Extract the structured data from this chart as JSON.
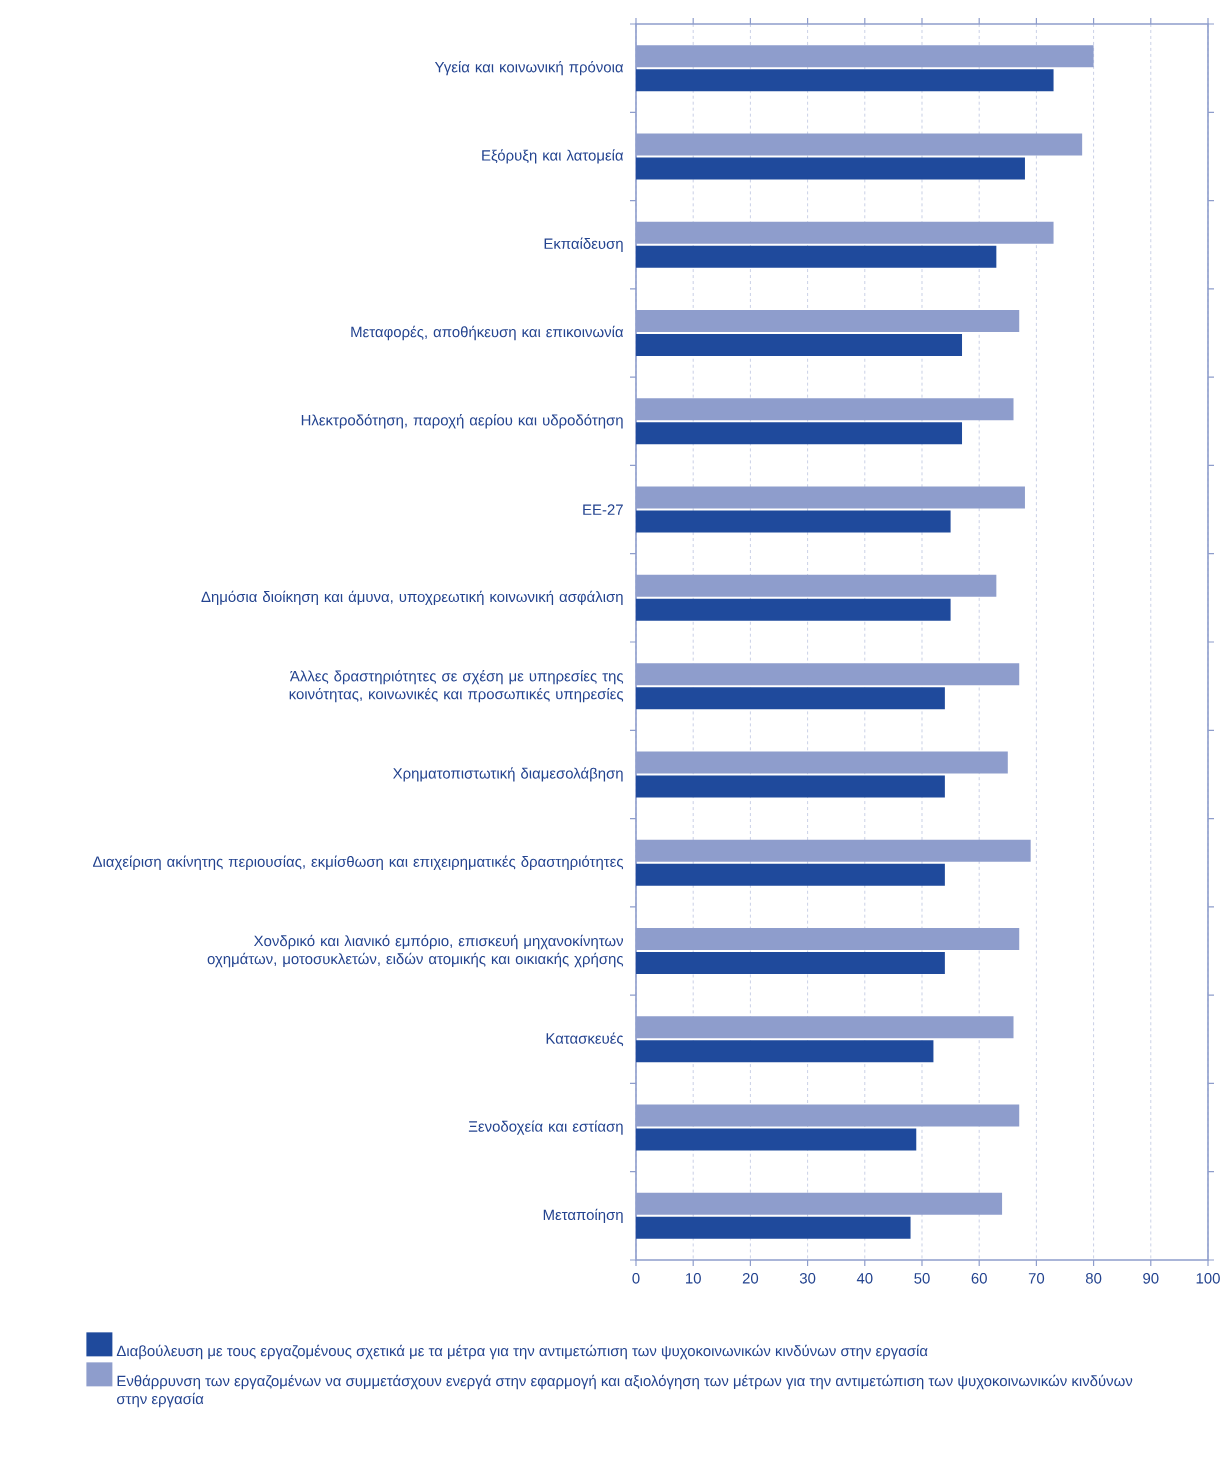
{
  "chart_data": {
    "type": "bar",
    "orientation": "horizontal",
    "categories": [
      "Υγεία και κοινωνική πρόνοια",
      "Εξόρυξη και λατομεία",
      "Εκπαίδευση",
      "Μεταφορές, αποθήκευση και επικοινωνία",
      "Ηλεκτροδότηση, παροχή αερίου και υδροδότηση",
      "ΕΕ-27",
      "Δημόσια διοίκηση και άμυνα, υποχρεωτική κοινωνική ασφάλιση",
      "Άλλες δραστηριότητες σε σχέση με υπηρεσίες της κοινότητας, κοινωνικές και προσωπικές υπηρεσίες",
      "Χρηματοπιστωτική διαμεσολάβηση",
      "Διαχείριση ακίνητης περιουσίας, εκμίσθωση και επιχειρηματικές δραστηριότητες",
      "Χονδρικό και λιανικό εμπόριο, επισκευή μηχανοκίνητων οχημάτων, μοτοσυκλετών, ειδών ατομικής και οικιακής χρήσης",
      "Κατασκευές",
      "Ξενοδοχεία και εστίαση",
      "Μεταποίηση"
    ],
    "series": [
      {
        "name": "Διαβούλευση με τους εργαζομένους σχετικά με τα μέτρα για την αντιμετώπιση των ψυχοκοινωνικών κινδύνων στην εργασία",
        "color": "#1f4a9c",
        "values": [
          73,
          68,
          63,
          57,
          57,
          55,
          55,
          54,
          54,
          54,
          54,
          52,
          49,
          48
        ]
      },
      {
        "name": "Ενθάρρυνση των εργαζομένων να συμμετάσχουν ενεργά στην εφαρμογή και αξιολόγηση των μέτρων για την αντιμετώπιση των ψυχοκοινωνικών κινδύνων στην εργασία",
        "color": "#8e9dcc",
        "values": [
          80,
          78,
          73,
          67,
          66,
          68,
          63,
          67,
          65,
          69,
          67,
          66,
          67,
          64
        ]
      }
    ],
    "xlim": [
      0,
      100
    ],
    "xticks": [
      0,
      10,
      20,
      30,
      40,
      50,
      60,
      70,
      80,
      90,
      100
    ],
    "grid": "x",
    "legend": "bottom"
  }
}
